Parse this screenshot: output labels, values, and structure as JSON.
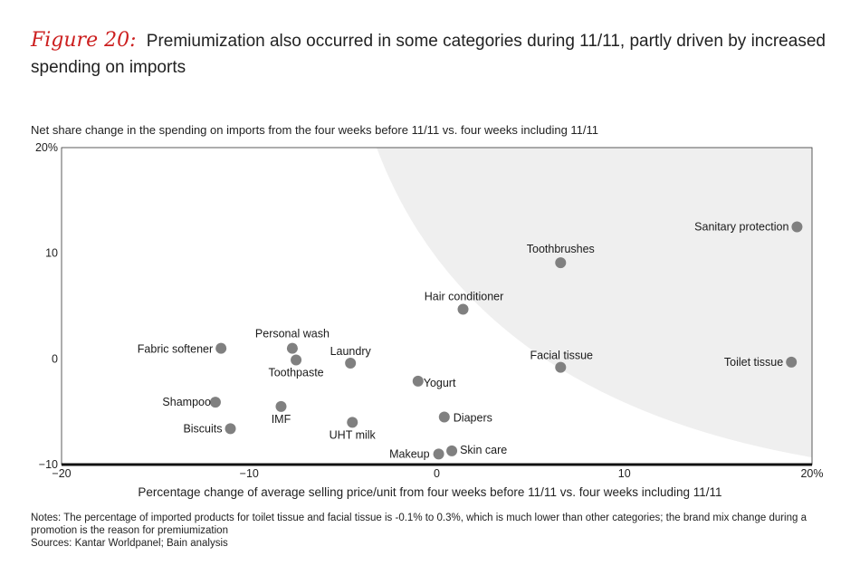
{
  "header": {
    "figure_label": "Figure 20:",
    "title": "Premiumization also occurred in some categories during 11/11, partly driven by increased spending on imports"
  },
  "chart_data": {
    "type": "scatter",
    "ylabel": "Net share change in the spending on imports from the four weeks before 11/11 vs. four weeks including 11/11",
    "xlabel": "Percentage change of average selling price/unit from four weeks before 11/11 vs. four weeks including 11/11",
    "xlim": [
      -20,
      20
    ],
    "ylim": [
      -10,
      20
    ],
    "x_ticks": [
      "−20",
      "−10",
      "0",
      "10",
      "20%"
    ],
    "y_ticks": [
      "−10",
      "0",
      "10",
      "20%"
    ],
    "grid": false,
    "shaded_region": "upper-right premiumization zone",
    "colors": {
      "point": "#808080",
      "shade": "#efefef",
      "axis": "#111111"
    },
    "points": [
      {
        "label": "Sanitary protection",
        "x": 19.2,
        "y": 12.5
      },
      {
        "label": "Toothbrushes",
        "x": 6.6,
        "y": 9.1
      },
      {
        "label": "Hair conditioner",
        "x": 1.4,
        "y": 4.7
      },
      {
        "label": "Toilet tissue",
        "x": 18.9,
        "y": -0.3
      },
      {
        "label": "Facial tissue",
        "x": 6.6,
        "y": -0.8
      },
      {
        "label": "Fabric softener",
        "x": -11.5,
        "y": 1.0
      },
      {
        "label": "Personal wash",
        "x": -7.7,
        "y": 1.0
      },
      {
        "label": "Toothpaste",
        "x": -7.5,
        "y": -0.1
      },
      {
        "label": "Laundry",
        "x": -4.6,
        "y": -0.4
      },
      {
        "label": "Yogurt",
        "x": -1.0,
        "y": -2.1
      },
      {
        "label": "Shampoo",
        "x": -11.8,
        "y": -4.1
      },
      {
        "label": "IMF",
        "x": -8.3,
        "y": -4.5
      },
      {
        "label": "Diapers",
        "x": 0.4,
        "y": -5.5
      },
      {
        "label": "UHT milk",
        "x": -4.5,
        "y": -6.0
      },
      {
        "label": "Biscuits",
        "x": -11.0,
        "y": -6.6
      },
      {
        "label": "Skin care",
        "x": 0.8,
        "y": -8.7
      },
      {
        "label": "Makeup",
        "x": 0.1,
        "y": -9.0
      }
    ]
  },
  "notes": {
    "line1": "Notes: The percentage of imported products for toilet tissue and facial tissue is -0.1% to 0.3%, which is much lower than other categories; the brand mix change during a promotion is the reason for premiumization",
    "line2": "Sources: Kantar Worldpanel; Bain analysis"
  }
}
